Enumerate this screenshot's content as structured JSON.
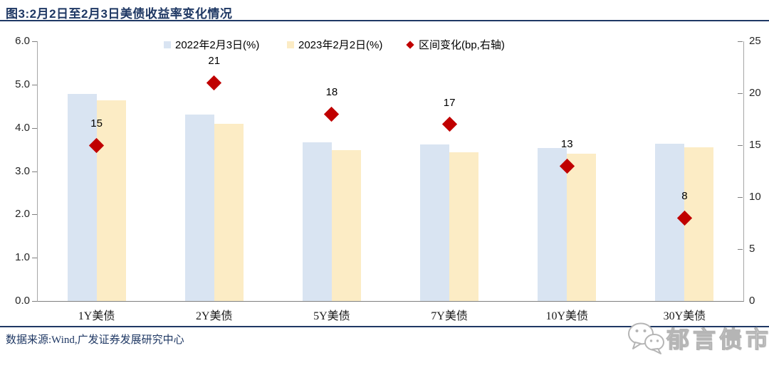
{
  "figure": {
    "title": "图3:2月2日至2月3日美债收益率变化情况",
    "source": "数据来源:Wind,广发证券发展研究中心",
    "watermark": "郁言债市"
  },
  "chart_data": {
    "type": "bar",
    "title": "图3:2月2日至2月3日美债收益率变化情况",
    "categories": [
      "1Y美债",
      "2Y美债",
      "5Y美债",
      "7Y美债",
      "10Y美债",
      "30Y美债"
    ],
    "series": [
      {
        "name": "2022年2月3日(%)",
        "type": "bar",
        "axis": "left",
        "color": "#d9e4f2",
        "values": [
          4.79,
          4.3,
          3.66,
          3.61,
          3.53,
          3.63
        ]
      },
      {
        "name": "2023年2月2日(%)",
        "type": "bar",
        "axis": "left",
        "color": "#fcecc5",
        "values": [
          4.64,
          4.09,
          3.49,
          3.44,
          3.4,
          3.55
        ]
      },
      {
        "name": "区间变化(bp,右轴)",
        "type": "diamond",
        "axis": "right",
        "color": "#c00000",
        "values": [
          15,
          21,
          18,
          17,
          13,
          8
        ],
        "labels": [
          "15",
          "21",
          "18",
          "17",
          "13",
          "8"
        ]
      }
    ],
    "left_axis": {
      "min": 0,
      "max": 6,
      "ticks": [
        "6.0",
        "5.0",
        "4.0",
        "3.0",
        "2.0",
        "1.0",
        "0.0"
      ]
    },
    "right_axis": {
      "min": 0,
      "max": 25,
      "ticks": [
        "25",
        "20",
        "15",
        "10",
        "5",
        "0"
      ]
    },
    "grid": false,
    "legend_position": "top"
  }
}
